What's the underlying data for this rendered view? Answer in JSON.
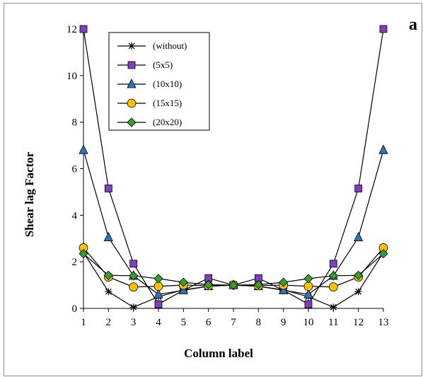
{
  "panel_label": "a",
  "chart_data": {
    "type": "line",
    "title": "",
    "xlabel": "Column label",
    "ylabel": "Shear lag Factor",
    "x": [
      1,
      2,
      3,
      4,
      5,
      6,
      7,
      8,
      9,
      10,
      11,
      12,
      13
    ],
    "xlim": [
      1,
      13
    ],
    "ylim": [
      0,
      12
    ],
    "yticks": [
      0,
      2,
      4,
      6,
      8,
      10,
      12
    ],
    "grid": false,
    "legend_position": "top-left",
    "series": [
      {
        "name": "(without)",
        "color": "#000000",
        "marker": "star",
        "values": [
          2.4,
          0.72,
          0.05,
          0.5,
          0.8,
          0.95,
          1.0,
          0.95,
          0.8,
          0.5,
          0.05,
          0.72,
          2.4
        ]
      },
      {
        "name": "(5x5)",
        "color": "#7f3fbf",
        "marker": "square",
        "values": [
          12.0,
          5.15,
          1.92,
          0.18,
          0.78,
          1.3,
          1.0,
          1.3,
          0.78,
          0.18,
          1.92,
          5.15,
          12.0
        ]
      },
      {
        "name": "(10x10)",
        "color": "#2e75b6",
        "marker": "triangle",
        "values": [
          6.8,
          3.05,
          1.4,
          0.6,
          0.78,
          0.95,
          1.0,
          0.95,
          0.78,
          0.6,
          1.4,
          3.05,
          6.8
        ]
      },
      {
        "name": "(15x15)",
        "color": "#ffc000",
        "marker": "circle",
        "values": [
          2.6,
          1.35,
          0.92,
          0.95,
          1.0,
          0.98,
          1.0,
          0.98,
          1.0,
          0.95,
          0.92,
          1.35,
          2.6
        ]
      },
      {
        "name": "(20x20)",
        "color": "#33a02c",
        "marker": "diamond",
        "values": [
          2.35,
          1.42,
          1.4,
          1.28,
          1.12,
          1.02,
          1.0,
          1.02,
          1.12,
          1.28,
          1.4,
          1.42,
          2.35
        ]
      }
    ]
  }
}
